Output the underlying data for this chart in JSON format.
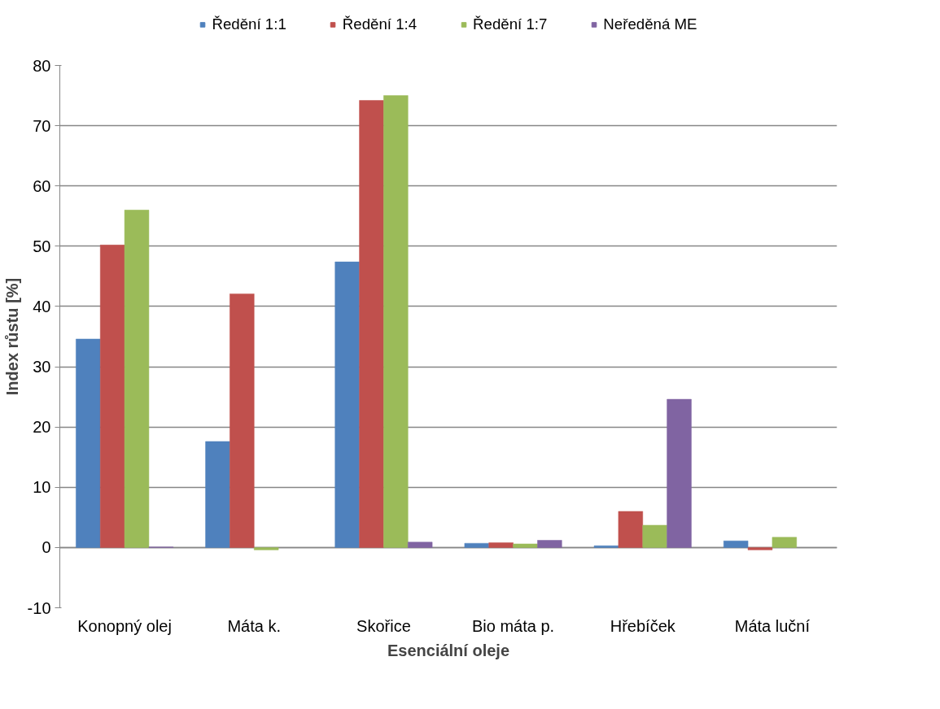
{
  "chart_data": {
    "type": "bar",
    "xlabel": "Esenciální oleje",
    "ylabel": "Index růstu [%]",
    "categories": [
      "Konopný olej",
      "Máta k.",
      "Skořice",
      "Bio máta p.",
      "Hřebíček",
      "Máta luční"
    ],
    "series": [
      {
        "name": "Ředění 1:1",
        "color": "#4f81bd",
        "values": [
          34.6,
          17.6,
          47.4,
          0.7,
          0.3,
          1.1
        ]
      },
      {
        "name": "Ředění 1:4",
        "color": "#c0504d",
        "values": [
          50.2,
          42.1,
          74.2,
          0.8,
          6.0,
          -0.4
        ]
      },
      {
        "name": "Ředění 1:7",
        "color": "#9bbb59",
        "values": [
          56.0,
          -0.4,
          75.0,
          0.6,
          3.7,
          1.7
        ]
      },
      {
        "name": "Neředěná ME",
        "color": "#8064a2",
        "values": [
          0.1,
          null,
          0.9,
          1.2,
          24.6,
          null
        ]
      }
    ],
    "ylim": [
      -10,
      80
    ],
    "yticks": [
      -10,
      0,
      10,
      20,
      30,
      40,
      50,
      60,
      70,
      80
    ],
    "grid": "y",
    "legend": "top"
  }
}
